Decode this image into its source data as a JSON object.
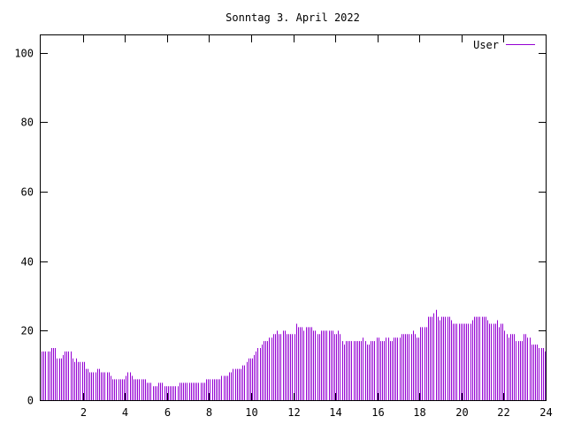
{
  "chart_data": {
    "type": "bar",
    "title": "Sonntag 3. April 2022",
    "xlabel": "",
    "ylabel": "",
    "xlim": [
      0,
      24
    ],
    "ylim": [
      0,
      105
    ],
    "xticks": [
      2,
      4,
      6,
      8,
      10,
      12,
      14,
      16,
      18,
      20,
      22,
      24
    ],
    "yticks": [
      0,
      20,
      40,
      60,
      80,
      100
    ],
    "grid": false,
    "legend_position": "top-right",
    "series": [
      {
        "name": "User",
        "color": "#9400d3",
        "values": [
          14,
          14,
          14,
          14,
          14,
          15,
          15,
          15,
          12,
          12,
          12,
          13,
          14,
          14,
          14,
          14,
          12,
          11,
          12,
          11,
          11,
          11,
          11,
          9,
          9,
          8,
          8,
          8,
          8,
          9,
          9,
          8,
          8,
          8,
          8,
          8,
          7,
          6,
          6,
          6,
          6,
          6,
          6,
          6,
          7,
          8,
          8,
          7,
          6,
          6,
          6,
          6,
          6,
          6,
          6,
          5,
          5,
          5,
          4,
          4,
          4,
          5,
          5,
          5,
          4,
          4,
          4,
          4,
          4,
          4,
          4,
          4,
          5,
          5,
          5,
          5,
          5,
          5,
          5,
          5,
          5,
          5,
          5,
          5,
          5,
          5,
          6,
          6,
          6,
          6,
          6,
          6,
          6,
          6,
          7,
          7,
          7,
          7,
          8,
          8,
          9,
          9,
          9,
          9,
          9,
          10,
          10,
          11,
          12,
          12,
          12,
          13,
          14,
          15,
          15,
          16,
          17,
          17,
          17,
          18,
          18,
          19,
          19,
          20,
          19,
          19,
          20,
          20,
          19,
          19,
          19,
          19,
          19,
          22,
          21,
          21,
          21,
          20,
          21,
          21,
          21,
          21,
          20,
          20,
          19,
          19,
          20,
          20,
          20,
          20,
          20,
          20,
          20,
          19,
          19,
          20,
          19,
          17,
          16,
          17,
          17,
          17,
          17,
          17,
          17,
          17,
          17,
          17,
          18,
          17,
          16,
          16,
          17,
          17,
          17,
          18,
          18,
          17,
          17,
          17,
          18,
          18,
          17,
          17,
          18,
          18,
          18,
          18,
          19,
          19,
          19,
          19,
          19,
          19,
          20,
          19,
          18,
          18,
          21,
          21,
          21,
          21,
          24,
          24,
          24,
          25,
          26,
          24,
          23,
          24,
          24,
          24,
          24,
          24,
          23,
          22,
          22,
          22,
          22,
          22,
          22,
          22,
          22,
          22,
          22,
          23,
          24,
          24,
          24,
          24,
          24,
          24,
          24,
          23,
          22,
          22,
          22,
          22,
          23,
          21,
          22,
          22,
          20,
          19,
          18,
          19,
          19,
          19,
          17,
          17,
          17,
          17,
          19,
          19,
          18,
          18,
          16,
          16,
          16,
          16,
          15,
          15,
          15,
          14
        ]
      }
    ]
  }
}
